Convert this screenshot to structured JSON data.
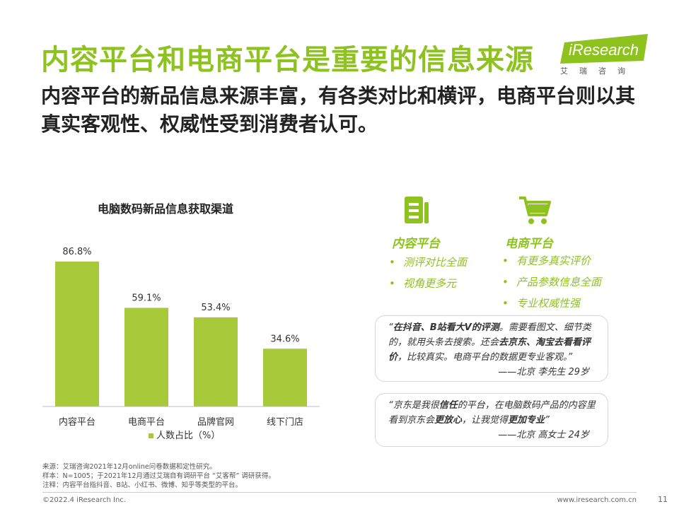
{
  "header": {
    "title": "内容平台和电商平台是重要的信息来源",
    "subtitle": "内容平台的新品信息来源丰富，有各类对比和横评，电商平台则以其真实客观性、权威性受到消费者认可。"
  },
  "logo": {
    "text": "iResearch",
    "cn": "艾瑞咨询"
  },
  "chart_data": {
    "type": "bar",
    "title": "电脑数码新品信息获取渠道",
    "categories": [
      "内容平台",
      "电商平台",
      "品牌官网",
      "线下门店"
    ],
    "series": [
      {
        "name": "人数占比（%）",
        "values": [
          86.8,
          59.1,
          53.4,
          34.6
        ]
      }
    ],
    "data_labels": [
      "86.8%",
      "59.1%",
      "53.4%",
      "34.6%"
    ],
    "legend": "bottom",
    "grid": false,
    "color": "#a8c93a"
  },
  "panels": {
    "content": {
      "title": "内容平台",
      "icon": "document-icon",
      "items": [
        "测评对比全面",
        "视角更多元"
      ]
    },
    "ecommerce": {
      "title": "电商平台",
      "icon": "cart-icon",
      "items": [
        "有更多真实评价",
        "产品参数信息全面",
        "专业权威性强"
      ]
    }
  },
  "quotes": {
    "q1": {
      "open": "“",
      "b1": "在抖音、B站看大V的评测",
      "t1": "。需要看图文、细节类的，就用头条去搜索。还会",
      "b2": "去京东、淘宝去看看评价",
      "t2": "，比较真实。电商平台的数据更专业客观。”",
      "who": "——北京 李先生 29岁"
    },
    "q2": {
      "t1": "“京东是我很",
      "b1": "信任",
      "t2": "的平台，在电脑数码产品的内容里看到京东会",
      "b2": "更放心",
      "t3": "，让我觉得",
      "b3": "更加专业",
      "t4": "”",
      "who": "——北京 高女士 24岁"
    }
  },
  "notes": {
    "line1": "来源：艾瑞咨询2021年12月online问卷数据和定性研究。",
    "line2": "样本：N=1005；于2021年12月通过艾瑞自有调研平台 “艾客帮” 调研获得。",
    "line3": "注释：内容平台指抖音、B站、小红书、微博、知乎等类型的平台。"
  },
  "footer": {
    "copyright": "©2022.4 iResearch Inc.",
    "url": "www.iresearch.com.cn",
    "page": "11"
  },
  "colors": {
    "accent": "#8dc21f",
    "bar": "#a8c93a"
  }
}
